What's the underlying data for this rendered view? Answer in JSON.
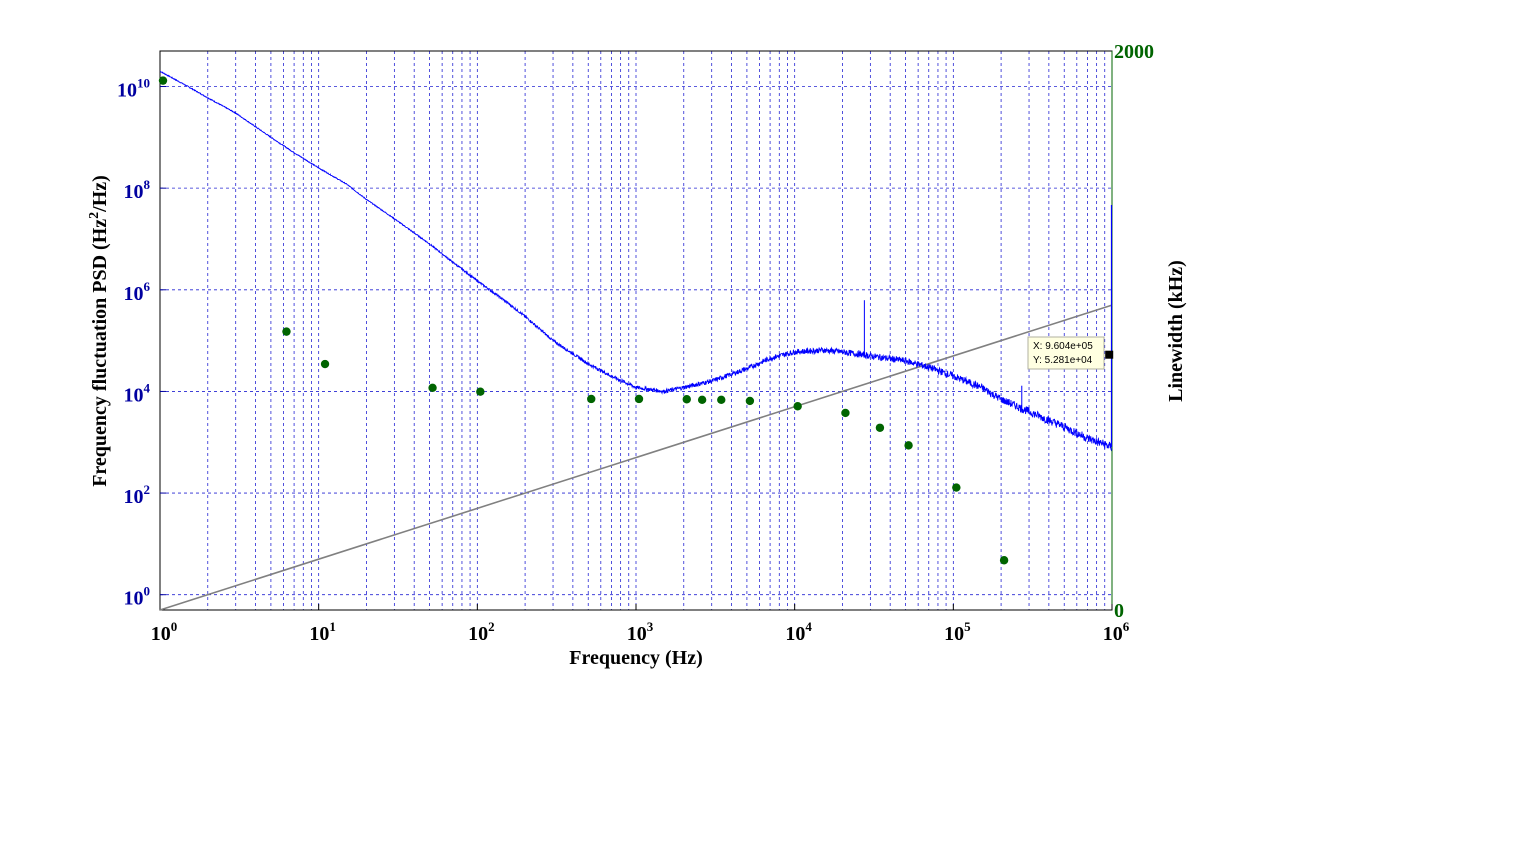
{
  "chart_data": {
    "type": "line",
    "xlabel": "Frequency (Hz)",
    "ylabel_left": "Frequency fluctuation PSD (Hz²/Hz)",
    "ylabel_left_parts": [
      "Frequency fluctuation PSD (Hz",
      "2",
      "/Hz)"
    ],
    "ylabel_right": "Linewidth (kHz)",
    "x_scale": "log",
    "xlim": [
      1,
      1000000
    ],
    "x_ticks": [
      1,
      10,
      100,
      1000,
      10000,
      100000,
      1000000
    ],
    "x_tick_labels": [
      {
        "base": "10",
        "exp": "0"
      },
      {
        "base": "10",
        "exp": "1"
      },
      {
        "base": "10",
        "exp": "2"
      },
      {
        "base": "10",
        "exp": "3"
      },
      {
        "base": "10",
        "exp": "4"
      },
      {
        "base": "10",
        "exp": "5"
      },
      {
        "base": "10",
        "exp": "6"
      }
    ],
    "y_left_scale": "log",
    "y_left_lim": [
      0.5,
      50000000000
    ],
    "y_left_ticks": [
      1,
      100,
      10000,
      1000000,
      100000000,
      10000000000
    ],
    "y_left_tick_labels": [
      {
        "base": "10",
        "exp": "0"
      },
      {
        "base": "10",
        "exp": "2"
      },
      {
        "base": "10",
        "exp": "4"
      },
      {
        "base": "10",
        "exp": "6"
      },
      {
        "base": "10",
        "exp": "8"
      },
      {
        "base": "10",
        "exp": "10"
      }
    ],
    "y_right_lim": [
      0,
      2000
    ],
    "y_right_tick_labels": [
      "0",
      "2000"
    ],
    "grid": true,
    "colors": {
      "psd": "#0000ff",
      "linewidth": "#006400",
      "reference_line": "#808080",
      "left_axis": "#0000a0",
      "right_axis": "#006400",
      "grid": "#0000cc"
    },
    "series": [
      {
        "kind": "psd-line",
        "axis": "left",
        "x": [
          1,
          1.5,
          2,
          3,
          5,
          7,
          10,
          15,
          20,
          30,
          50,
          70,
          100,
          150,
          200,
          300,
          500,
          700,
          1000,
          1500,
          2000,
          3000,
          5000,
          7000,
          10000,
          15000,
          20000,
          30000,
          50000,
          70000,
          100000,
          150000,
          200000,
          300000,
          500000,
          700000,
          1000000
        ],
        "y": [
          20000000000,
          10000000000,
          6000000000,
          3000000000,
          1000000000,
          500000000,
          250000000,
          120000000,
          60000000,
          25000000,
          8000000,
          3500000,
          1500000,
          600000,
          300000,
          100000,
          35000,
          20000,
          12000,
          10000,
          12000,
          16000,
          28000,
          45000,
          60000,
          65000,
          60000,
          50000,
          40000,
          30000,
          20000,
          12000,
          7000,
          4000,
          2000,
          1200,
          800
        ]
      },
      {
        "kind": "linewidth-points",
        "axis": "right",
        "x": [
          1,
          6,
          10.5,
          50,
          100,
          500,
          1000,
          2000,
          2500,
          3300,
          5000,
          10000,
          20000,
          33000,
          50000,
          100000,
          200000
        ],
        "y": [
          1894,
          996,
          880,
          795,
          781,
          755,
          755,
          754,
          752,
          752,
          748,
          729,
          705,
          652,
          589,
          438,
          178
        ]
      },
      {
        "kind": "reference-line",
        "axis": "left",
        "x": [
          1,
          1000000
        ],
        "y": [
          0.5,
          500000
        ]
      }
    ],
    "annotations": [
      {
        "type": "datatip",
        "x": 960400,
        "y": 52810,
        "text_x": "X: 9.604e+05",
        "text_y": "Y: 5.281e+04"
      }
    ]
  }
}
